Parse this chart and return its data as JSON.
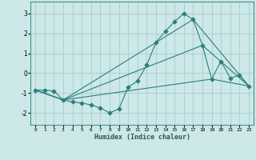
{
  "xlabel": "Humidex (Indice chaleur)",
  "ylabel": "",
  "bg_color": "#cce8e8",
  "grid_color": "#aacccc",
  "line_color": "#2e7d7d",
  "xlim": [
    -0.5,
    23.5
  ],
  "ylim": [
    -2.6,
    3.6
  ],
  "yticks": [
    -2,
    -1,
    0,
    1,
    2,
    3
  ],
  "xticks": [
    0,
    1,
    2,
    3,
    4,
    5,
    6,
    7,
    8,
    9,
    10,
    11,
    12,
    13,
    14,
    15,
    16,
    17,
    18,
    19,
    20,
    21,
    22,
    23
  ],
  "line1_x": [
    0,
    1,
    2,
    3,
    4,
    5,
    6,
    7,
    8,
    9,
    10,
    11,
    12,
    13,
    14,
    15,
    16,
    17,
    18,
    19,
    20,
    21,
    22,
    23
  ],
  "line1_y": [
    -0.85,
    -0.85,
    -0.9,
    -1.35,
    -1.45,
    -1.5,
    -1.6,
    -1.75,
    -2.0,
    -1.8,
    -0.7,
    -0.4,
    0.4,
    1.55,
    2.1,
    2.6,
    3.0,
    2.7,
    1.4,
    -0.3,
    0.6,
    -0.25,
    -0.1,
    -0.65
  ],
  "line2_x": [
    0,
    3,
    17,
    23
  ],
  "line2_y": [
    -0.85,
    -1.35,
    2.7,
    -0.65
  ],
  "line3_x": [
    0,
    3,
    18,
    23
  ],
  "line3_y": [
    -0.85,
    -1.35,
    1.4,
    -0.65
  ],
  "line4_x": [
    0,
    3,
    19,
    23
  ],
  "line4_y": [
    -0.85,
    -1.35,
    -0.3,
    -0.65
  ]
}
